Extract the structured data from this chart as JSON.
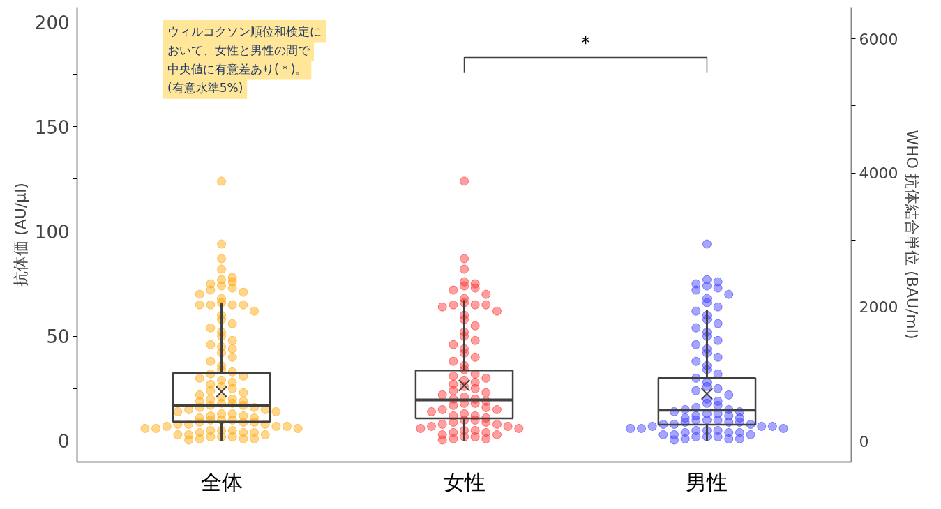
{
  "chart_data": {
    "type": "box",
    "categories": [
      "全体",
      "女性",
      "男性"
    ],
    "ylabel": "抗体価 (AU/μl)",
    "y2label": "WHO 抗体結合単位 (BAU/ml)",
    "ylim": [
      -10,
      207
    ],
    "yticks": [
      0,
      {
        "value": 25,
        "label": null
      },
      50,
      {
        "value": 75,
        "label": null
      },
      100,
      {
        "value": 125,
        "label": null
      },
      150,
      {
        "value": 175,
        "label": null
      },
      200
    ],
    "y2lim": [
      -310,
      6470
    ],
    "y2ticks": [
      0,
      {
        "value": 1000,
        "label": null
      },
      2000,
      {
        "value": 3000,
        "label": null
      },
      4000,
      {
        "value": 5000,
        "label": null
      },
      6000
    ],
    "grid": false,
    "boxes": [
      {
        "low": 0,
        "q1": 9.2,
        "median": 17,
        "q3": 32.4,
        "high": 65.7,
        "mean": 23.5
      },
      {
        "low": 0,
        "q1": 10.8,
        "median": 19.6,
        "q3": 33.7,
        "high": 67.3,
        "mean": 26.5
      },
      {
        "low": 0,
        "q1": 7.8,
        "median": 14.7,
        "q3": 30,
        "high": 62.4,
        "mean": 22.5
      }
    ],
    "series": [
      {
        "type": "scatter",
        "color": "#ffa500",
        "x": [
          "全体",
          "全体",
          "全体",
          "全体",
          "全体",
          "全体",
          "全体",
          "全体",
          "全体",
          "全体",
          "全体",
          "全体",
          "全体",
          "全体",
          "全体",
          "全体",
          "全体",
          "全体",
          "全体",
          "全体",
          "全体",
          "全体",
          "全体",
          "全体",
          "全体",
          "全体",
          "全体",
          "全体",
          "全体",
          "全体",
          "全体",
          "全体",
          "全体",
          "全体",
          "全体",
          "全体",
          "全体",
          "全体",
          "全体",
          "全体",
          "全体",
          "全体",
          "全体",
          "全体",
          "全体",
          "全体",
          "全体",
          "全体",
          "全体",
          "全体",
          "全体",
          "全体",
          "全体",
          "全体",
          "全体",
          "全体",
          "全体",
          "全体",
          "全体",
          "全体",
          "全体",
          "全体",
          "全体",
          "全体",
          "全体",
          "全体",
          "全体",
          "全体",
          "全体",
          "全体",
          "全体",
          "全体",
          "全体",
          "全体",
          "全体",
          "全体",
          "全体",
          "全体",
          "全体",
          "全体",
          "全体",
          "全体",
          "全体",
          "全体",
          "全体",
          "全体",
          "全体",
          "全体",
          "全体",
          "全体",
          "全体",
          "全体",
          "全体",
          "全体",
          "全体",
          "全体",
          "全体",
          "全体",
          "全体"
        ],
        "values": [
          124,
          94,
          87,
          82,
          78,
          77,
          76,
          75,
          74,
          73,
          72,
          71,
          70,
          68,
          66,
          65,
          65,
          65,
          65,
          62,
          60,
          58,
          56,
          54,
          52,
          50,
          48,
          46,
          45,
          44,
          42,
          40,
          38,
          36,
          34,
          33,
          32,
          31,
          30,
          29,
          28,
          27,
          26,
          25,
          24,
          23,
          22,
          21,
          20,
          20,
          19,
          19,
          18,
          18,
          17,
          17,
          16,
          16,
          15,
          15,
          14,
          14,
          13,
          13,
          12,
          12,
          11,
          11,
          10,
          10,
          10,
          9,
          9,
          9,
          8,
          8,
          8,
          7,
          7,
          7,
          6,
          6,
          6,
          5,
          5,
          5,
          4,
          4,
          4,
          3,
          3,
          3,
          2,
          2,
          2,
          1,
          1,
          1,
          0.5
        ]
      },
      {
        "type": "scatter",
        "color": "#ff2a2a",
        "x": [
          "女性",
          "女性",
          "女性",
          "女性",
          "女性",
          "女性",
          "女性",
          "女性",
          "女性",
          "女性",
          "女性",
          "女性",
          "女性",
          "女性",
          "女性",
          "女性",
          "女性",
          "女性",
          "女性",
          "女性",
          "女性",
          "女性",
          "女性",
          "女性",
          "女性",
          "女性",
          "女性",
          "女性",
          "女性",
          "女性",
          "女性",
          "女性",
          "女性",
          "女性",
          "女性",
          "女性",
          "女性",
          "女性",
          "女性",
          "女性",
          "女性",
          "女性",
          "女性",
          "女性",
          "女性",
          "女性",
          "女性",
          "女性",
          "女性",
          "女性",
          "女性",
          "女性",
          "女性",
          "女性",
          "女性",
          "女性",
          "女性",
          "女性",
          "女性",
          "女性",
          "女性",
          "女性",
          "女性",
          "女性",
          "女性",
          "女性",
          "女性",
          "女性",
          "女性",
          "女性",
          "女性",
          "女性",
          "女性",
          "女性",
          "女性",
          "女性"
        ],
        "values": [
          124,
          87,
          82,
          76,
          75,
          74,
          73,
          72,
          70,
          68,
          66,
          65,
          65,
          65,
          64,
          62,
          60,
          58,
          55,
          52,
          50,
          48,
          46,
          44,
          42,
          40,
          38,
          36,
          34,
          32,
          31,
          30,
          29,
          28,
          27,
          26,
          25,
          24,
          23,
          22,
          21,
          20,
          20,
          19,
          18,
          18,
          17,
          16,
          15,
          15,
          14,
          13,
          12,
          12,
          11,
          10,
          10,
          9,
          9,
          8,
          8,
          7,
          7,
          6,
          6,
          5,
          5,
          4,
          4,
          3,
          3,
          2,
          2,
          1,
          1,
          0.5
        ]
      },
      {
        "type": "scatter",
        "color": "#3a3aff",
        "x": [
          "男性",
          "男性",
          "男性",
          "男性",
          "男性",
          "男性",
          "男性",
          "男性",
          "男性",
          "男性",
          "男性",
          "男性",
          "男性",
          "男性",
          "男性",
          "男性",
          "男性",
          "男性",
          "男性",
          "男性",
          "男性",
          "男性",
          "男性",
          "男性",
          "男性",
          "男性",
          "男性",
          "男性",
          "男性",
          "男性",
          "男性",
          "男性",
          "男性",
          "男性",
          "男性",
          "男性",
          "男性",
          "男性",
          "男性",
          "男性",
          "男性",
          "男性",
          "男性",
          "男性",
          "男性",
          "男性",
          "男性",
          "男性",
          "男性",
          "男性",
          "男性",
          "男性",
          "男性",
          "男性",
          "男性",
          "男性",
          "男性",
          "男性",
          "男性",
          "男性",
          "男性",
          "男性",
          "男性",
          "男性",
          "男性",
          "男性",
          "男性",
          "男性",
          "男性",
          "男性",
          "男性",
          "男性",
          "男性",
          "男性",
          "男性",
          "男性",
          "男性",
          "男性",
          "男性"
        ],
        "values": [
          94,
          77,
          76,
          75,
          74,
          73,
          72,
          70,
          68,
          66,
          64,
          62,
          60,
          58,
          56,
          54,
          52,
          50,
          48,
          46,
          44,
          42,
          40,
          38,
          36,
          34,
          32,
          30,
          28,
          26,
          25,
          24,
          22,
          20,
          19,
          18,
          17,
          16,
          15,
          15,
          14,
          14,
          13,
          13,
          12,
          12,
          11,
          11,
          10,
          10,
          10,
          9,
          9,
          9,
          8,
          8,
          8,
          7,
          7,
          7,
          6,
          6,
          6,
          5,
          5,
          5,
          4,
          4,
          4,
          3,
          3,
          3,
          2,
          2,
          2,
          1,
          1,
          1,
          0.5
        ]
      }
    ],
    "annotations": [
      "ウィルコクソン順位和検定に",
      "おいて、女性と男性の間で",
      "中央値に有意差あり(＊)。",
      "(有意水準5%)",
      "*"
    ]
  }
}
